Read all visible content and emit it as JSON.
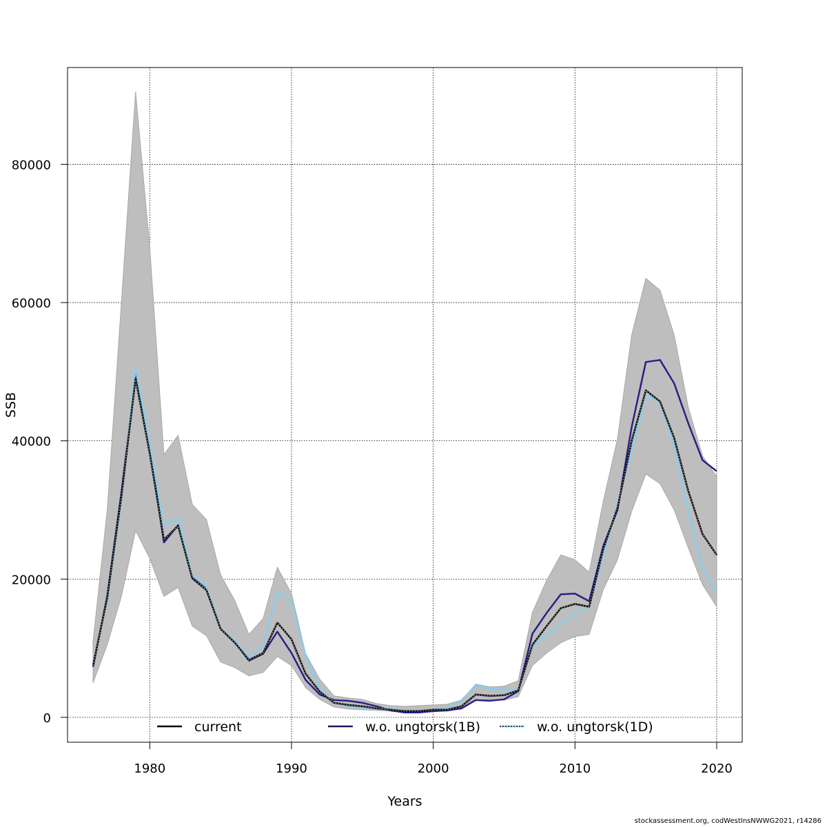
{
  "footer": "stockassessment.org, codWestInsNWWG2021, r14286",
  "colors": {
    "band": "#bebebe",
    "current": "#000000",
    "ungtorsk_1B": "#2d1e85",
    "ungtorsk_1D": "#87ceeb",
    "grid": "#000000"
  },
  "chart_data": {
    "type": "line",
    "xlabel": "Years",
    "ylabel": "SSB",
    "xlim": [
      1974.2,
      2021.8
    ],
    "ylim": [
      -3600,
      94000
    ],
    "xticks": [
      1980,
      1990,
      2000,
      2010,
      2020
    ],
    "yticks": [
      0,
      20000,
      40000,
      60000,
      80000
    ],
    "grid": true,
    "legend_position": "bottom",
    "x": [
      1976,
      1977,
      1978,
      1979,
      1980,
      1981,
      1982,
      1983,
      1984,
      1985,
      1986,
      1987,
      1988,
      1989,
      1990,
      1991,
      1992,
      1993,
      1994,
      1995,
      1996,
      1997,
      1998,
      1999,
      2000,
      2001,
      2002,
      2003,
      2004,
      2005,
      2006,
      2007,
      2008,
      2009,
      2010,
      2011,
      2012,
      2013,
      2014,
      2015,
      2016,
      2017,
      2018,
      2019,
      2020
    ],
    "band": {
      "lower": [
        5000,
        10500,
        17500,
        27000,
        23000,
        17500,
        18800,
        13200,
        11800,
        8000,
        7200,
        6000,
        6500,
        8800,
        7500,
        4300,
        2600,
        1500,
        1200,
        1100,
        1000,
        900,
        750,
        750,
        900,
        1000,
        1200,
        2500,
        2600,
        2500,
        3000,
        7500,
        9300,
        10800,
        11700,
        12000,
        18500,
        22800,
        29800,
        35200,
        33800,
        30000,
        24500,
        19200,
        16000
      ],
      "upper": [
        11000,
        30000,
        60000,
        90500,
        68000,
        38000,
        40800,
        30800,
        28600,
        20600,
        16900,
        12000,
        14300,
        21700,
        17900,
        9200,
        5500,
        3100,
        2800,
        2600,
        2000,
        1700,
        1600,
        1700,
        1800,
        1900,
        2500,
        4800,
        4400,
        4500,
        5300,
        15200,
        19800,
        23500,
        22800,
        21000,
        31300,
        40300,
        55300,
        63500,
        61800,
        55300,
        44800,
        37800,
        34800
      ]
    },
    "series": [
      {
        "name": "current",
        "values": [
          7500,
          17300,
          32000,
          49000,
          38200,
          25700,
          27700,
          20100,
          18400,
          12800,
          10800,
          8300,
          9300,
          13700,
          11300,
          6300,
          3700,
          2100,
          1800,
          1600,
          1300,
          1100,
          900,
          900,
          1100,
          1100,
          1600,
          3300,
          3100,
          3200,
          3900,
          10500,
          13200,
          15800,
          16400,
          16000,
          24400,
          30300,
          40000,
          47300,
          45700,
          40400,
          32700,
          26500,
          23500
        ]
      },
      {
        "name": "w.o. ungtorsk(1B)",
        "values": [
          7300,
          17500,
          32500,
          49500,
          38900,
          25300,
          27800,
          20400,
          18800,
          12800,
          10900,
          8200,
          9200,
          12400,
          9300,
          5400,
          3300,
          2500,
          2400,
          2100,
          1600,
          1000,
          700,
          700,
          900,
          1000,
          1300,
          2500,
          2400,
          2600,
          3800,
          12100,
          15100,
          17800,
          17900,
          16800,
          24800,
          30000,
          42000,
          51400,
          51700,
          48300,
          42500,
          37200,
          35600
        ]
      },
      {
        "name": "w.o. ungtorsk(1D)",
        "values": [
          7600,
          17000,
          31500,
          50500,
          39500,
          27700,
          28800,
          20500,
          18900,
          12900,
          11000,
          8700,
          10200,
          18200,
          16900,
          8900,
          4000,
          2100,
          1600,
          1400,
          1300,
          1200,
          1000,
          1000,
          1100,
          1300,
          2500,
          4500,
          4200,
          4000,
          4000,
          10200,
          12000,
          13500,
          15000,
          16000,
          23500,
          31000,
          38500,
          46700,
          45600,
          39400,
          29800,
          21600,
          17900
        ]
      }
    ]
  }
}
